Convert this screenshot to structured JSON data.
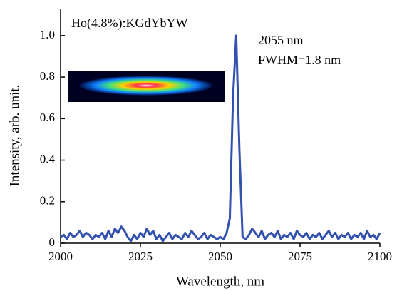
{
  "chart_data": {
    "type": "line",
    "title": "Ho(4.8%):KGdYbYW",
    "annotations": [
      "2055 nm",
      "FWHM=1.8 nm"
    ],
    "xlabel": "Wavelength, nm",
    "ylabel": "Intensity, arb. unit.",
    "x": [
      2000,
      2001,
      2002,
      2003,
      2004,
      2005,
      2006,
      2007,
      2008,
      2009,
      2010,
      2011,
      2012,
      2013,
      2014,
      2015,
      2016,
      2017,
      2018,
      2019,
      2020,
      2021,
      2022,
      2023,
      2024,
      2025,
      2026,
      2027,
      2028,
      2029,
      2030,
      2031,
      2032,
      2033,
      2034,
      2035,
      2036,
      2037,
      2038,
      2039,
      2040,
      2041,
      2042,
      2043,
      2044,
      2045,
      2046,
      2047,
      2048,
      2049,
      2050,
      2051,
      2052,
      2053,
      2054,
      2055,
      2056,
      2057,
      2058,
      2059,
      2060,
      2061,
      2062,
      2063,
      2064,
      2065,
      2066,
      2067,
      2068,
      2069,
      2070,
      2071,
      2072,
      2073,
      2074,
      2075,
      2076,
      2077,
      2078,
      2079,
      2080,
      2081,
      2082,
      2083,
      2084,
      2085,
      2086,
      2087,
      2088,
      2089,
      2090,
      2091,
      2092,
      2093,
      2094,
      2095,
      2096,
      2097,
      2098,
      2099,
      2100
    ],
    "series": [
      {
        "name": "Ho(4.8%):KGdYbYW",
        "color": "#3352b0",
        "values": [
          0.03,
          0.04,
          0.02,
          0.05,
          0.03,
          0.04,
          0.06,
          0.03,
          0.05,
          0.04,
          0.02,
          0.04,
          0.03,
          0.05,
          0.02,
          0.06,
          0.03,
          0.07,
          0.05,
          0.08,
          0.06,
          0.03,
          0.01,
          0.04,
          0.02,
          0.05,
          0.03,
          0.07,
          0.04,
          0.06,
          0.02,
          0.04,
          0.01,
          0.03,
          0.05,
          0.02,
          0.04,
          0.03,
          0.02,
          0.05,
          0.03,
          0.06,
          0.04,
          0.02,
          0.03,
          0.05,
          0.02,
          0.04,
          0.03,
          0.02,
          0.03,
          0.02,
          0.05,
          0.12,
          0.7,
          1.0,
          0.45,
          0.03,
          0.02,
          0.04,
          0.07,
          0.05,
          0.03,
          0.06,
          0.02,
          0.04,
          0.05,
          0.03,
          0.06,
          0.02,
          0.04,
          0.03,
          0.05,
          0.02,
          0.06,
          0.04,
          0.03,
          0.05,
          0.02,
          0.04,
          0.03,
          0.05,
          0.02,
          0.04,
          0.06,
          0.03,
          0.05,
          0.02,
          0.04,
          0.03,
          0.05,
          0.02,
          0.04,
          0.03,
          0.05,
          0.02,
          0.06,
          0.03,
          0.04,
          0.02,
          0.05
        ]
      }
    ],
    "xlim": [
      2000,
      2100
    ],
    "xticks": [
      2000,
      2025,
      2050,
      2075,
      2100
    ],
    "ylim": [
      0,
      1.13
    ],
    "yticks": [
      0,
      0.2,
      0.4,
      0.6,
      0.8,
      {
        "value": 1,
        "label": "1.0"
      }
    ],
    "grid": false
  }
}
